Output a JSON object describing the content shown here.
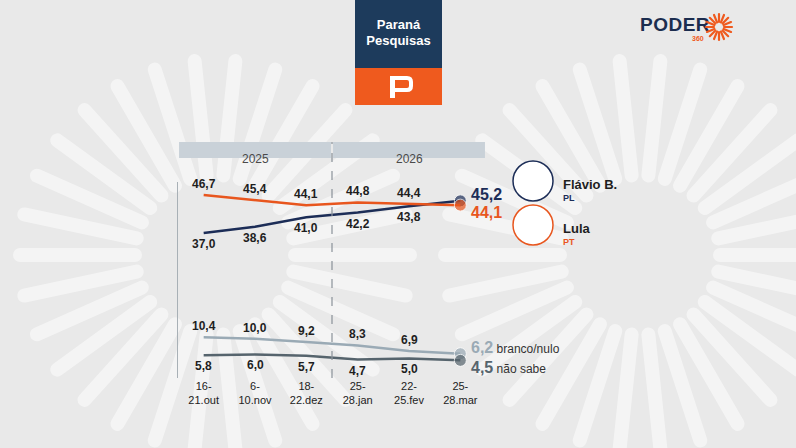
{
  "chart_data": {
    "type": "line",
    "title": "Paraná Pesquisas",
    "brand": "PODER",
    "brand_suffix": "360",
    "categories": [
      "16-21.out",
      "6-10.nov",
      "18-22.dez",
      "25-28.jan",
      "22-25.fev",
      "25-28.mar"
    ],
    "periods": [
      {
        "label": "2025",
        "from": "16-21.out",
        "to": "18-22.dez"
      },
      {
        "label": "2026",
        "from": "25-28.jan",
        "to": "25-28.mar"
      }
    ],
    "series": [
      {
        "name": "Flávio B.",
        "party": "PL",
        "color": "#1c2d57",
        "marker": "circle",
        "line_style": "solid",
        "values": [
          37.0,
          38.6,
          41.0,
          42.2,
          43.8,
          45.2
        ],
        "value_labels": [
          "37,0",
          "38,6",
          "41,0",
          "42,2",
          "43,8",
          "45,2"
        ]
      },
      {
        "name": "Lula",
        "party": "PT",
        "color": "#e8561e",
        "marker": "circle",
        "line_style": "solid",
        "values": [
          46.7,
          45.4,
          44.1,
          44.8,
          44.4,
          44.1
        ],
        "value_labels": [
          "46,7",
          "45,4",
          "44,1",
          "44,8",
          "44,4",
          "44,1"
        ]
      },
      {
        "name": "branco/nulo",
        "color": "#9aaab5",
        "marker": "circle",
        "line_style": "solid",
        "values": [
          10.4,
          10.0,
          9.2,
          8.3,
          6.9,
          6.2
        ],
        "value_labels": [
          "10,4",
          "10,0",
          "9,2",
          "8,3",
          "6,9",
          "6,2"
        ]
      },
      {
        "name": "não sabe",
        "color": "#56646d",
        "marker": "circle",
        "line_style": "solid",
        "values": [
          5.8,
          6.0,
          5.7,
          4.7,
          5.0,
          4.5
        ],
        "value_labels": [
          "5,8",
          "6,0",
          "5,7",
          "4,7",
          "5,0",
          "4,5"
        ]
      }
    ],
    "ylim": [
      0,
      50
    ],
    "yticks": [],
    "grid": false,
    "legend": "right",
    "data_labels": true,
    "tick_labels": "x"
  }
}
